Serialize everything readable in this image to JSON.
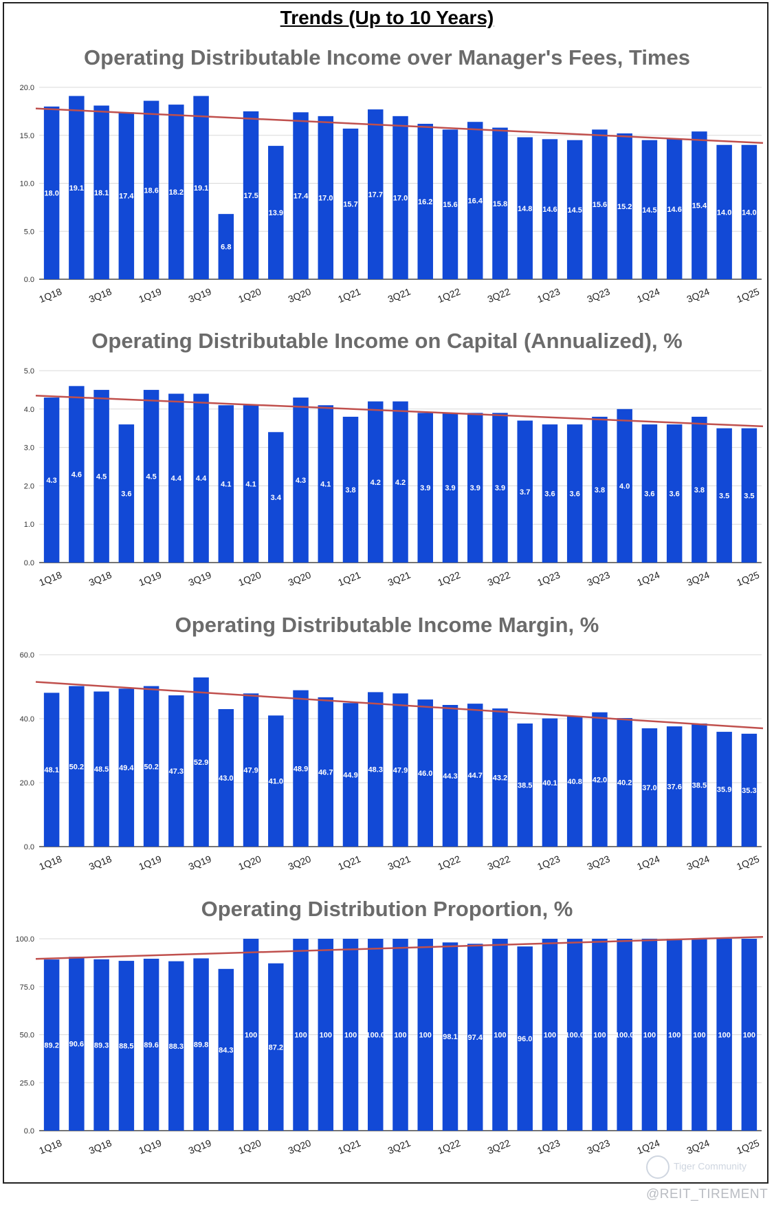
{
  "page": {
    "title": "Trends (Up to 10 Years)"
  },
  "colors": {
    "bar": "#1249d6",
    "trend": "#c0504d",
    "grid": "#d9d9d9"
  },
  "footer": {
    "watermark": "Tiger Community",
    "handle": "@REIT_TIREMENT"
  },
  "chart_data": [
    {
      "type": "bar",
      "title": "Operating Distributable Income over Manager's Fees, Times",
      "ylim": [
        0,
        20
      ],
      "yticks": [
        "0.0",
        "5.0",
        "10.0",
        "15.0",
        "20.0"
      ],
      "xtick_labels": [
        "1Q18",
        "3Q18",
        "1Q19",
        "3Q19",
        "1Q20",
        "3Q20",
        "1Q21",
        "3Q21",
        "1Q22",
        "3Q22",
        "1Q23",
        "3Q23",
        "1Q24",
        "3Q24",
        "1Q25"
      ],
      "values": [
        18.0,
        19.1,
        18.1,
        17.4,
        18.6,
        18.2,
        19.1,
        6.8,
        17.5,
        13.9,
        17.4,
        17.0,
        15.7,
        17.7,
        17.0,
        16.2,
        15.6,
        16.4,
        15.8,
        14.8,
        14.6,
        14.5,
        15.6,
        15.2,
        14.5,
        14.6,
        15.4,
        14.0,
        14.0
      ],
      "labels": [
        "18.0",
        "19.1",
        "18.1",
        "17.4",
        "18.6",
        "18.2",
        "19.1",
        "6.8",
        "17.5",
        "13.9",
        "17.4",
        "17.0",
        "15.7",
        "17.7",
        "17.0",
        "16.2",
        "15.6",
        "16.4",
        "15.8",
        "14.8",
        "14.6",
        "14.5",
        "15.6",
        "15.2",
        "14.5",
        "14.6",
        "15.4",
        "14.0",
        "14.0"
      ],
      "trendline": [
        17.8,
        14.2
      ]
    },
    {
      "type": "bar",
      "title": "Operating Distributable Income on Capital (Annualized), %",
      "ylim": [
        0,
        5
      ],
      "yticks": [
        "0.0",
        "1.0",
        "2.0",
        "3.0",
        "4.0",
        "5.0"
      ],
      "xtick_labels": [
        "1Q18",
        "3Q18",
        "1Q19",
        "3Q19",
        "1Q20",
        "3Q20",
        "1Q21",
        "3Q21",
        "1Q22",
        "3Q22",
        "1Q23",
        "3Q23",
        "1Q24",
        "3Q24",
        "1Q25"
      ],
      "values": [
        4.3,
        4.6,
        4.5,
        3.6,
        4.5,
        4.4,
        4.4,
        4.1,
        4.1,
        3.4,
        4.3,
        4.1,
        3.8,
        4.2,
        4.2,
        3.9,
        3.9,
        3.9,
        3.9,
        3.7,
        3.6,
        3.6,
        3.8,
        4.0,
        3.6,
        3.6,
        3.8,
        3.5,
        3.5
      ],
      "labels": [
        "4.3",
        "4.6",
        "4.5",
        "3.6",
        "4.5",
        "4.4",
        "4.4",
        "4.1",
        "4.1",
        "3.4",
        "4.3",
        "4.1",
        "3.8",
        "4.2",
        "4.2",
        "3.9",
        "3.9",
        "3.9",
        "3.9",
        "3.7",
        "3.6",
        "3.6",
        "3.8",
        "4.0",
        "3.6",
        "3.6",
        "3.8",
        "3.5",
        "3.5"
      ],
      "trendline": [
        4.35,
        3.55
      ]
    },
    {
      "type": "bar",
      "title": "Operating Distributable Income Margin, %",
      "ylim": [
        0,
        60
      ],
      "yticks": [
        "0.0",
        "20.0",
        "40.0",
        "60.0"
      ],
      "xtick_labels": [
        "1Q18",
        "3Q18",
        "1Q19",
        "3Q19",
        "1Q20",
        "3Q20",
        "1Q21",
        "3Q21",
        "1Q22",
        "3Q22",
        "1Q23",
        "3Q23",
        "1Q24",
        "3Q24",
        "1Q25"
      ],
      "values": [
        48.1,
        50.2,
        48.5,
        49.4,
        50.2,
        47.3,
        52.9,
        43.0,
        47.9,
        41.0,
        48.9,
        46.7,
        44.9,
        48.3,
        47.9,
        46.0,
        44.3,
        44.7,
        43.2,
        38.5,
        40.1,
        40.8,
        42.0,
        40.2,
        37.0,
        37.6,
        38.5,
        35.9,
        35.3
      ],
      "labels": [
        "48.1",
        "50.2",
        "48.5",
        "49.4",
        "50.2",
        "47.3",
        "52.9",
        "43.0",
        "47.9",
        "41.0",
        "48.9",
        "46.7",
        "44.9",
        "48.3",
        "47.9",
        "46.0",
        "44.3",
        "44.7",
        "43.2",
        "38.5",
        "40.1",
        "40.8",
        "42.0",
        "40.2",
        "37.0",
        "37.6",
        "38.5",
        "35.9",
        "35.3"
      ],
      "trendline": [
        51.5,
        37.0
      ]
    },
    {
      "type": "bar",
      "title": "Operating Distribution Proportion, %",
      "ylim": [
        0,
        100
      ],
      "yticks": [
        "0.0",
        "25.0",
        "50.0",
        "75.0",
        "100.0"
      ],
      "xtick_labels": [
        "1Q18",
        "3Q18",
        "1Q19",
        "3Q19",
        "1Q20",
        "3Q20",
        "1Q21",
        "3Q21",
        "1Q22",
        "3Q22",
        "1Q23",
        "3Q23",
        "1Q24",
        "3Q24",
        "1Q25"
      ],
      "values": [
        89.2,
        90.6,
        89.3,
        88.5,
        89.6,
        88.3,
        89.8,
        84.3,
        100,
        87.2,
        100,
        100,
        100,
        100.0,
        100,
        100,
        98.1,
        97.4,
        100,
        96.0,
        100,
        100.0,
        100,
        100.0,
        100,
        100,
        100,
        100,
        100
      ],
      "labels": [
        "89.2",
        "90.6",
        "89.3",
        "88.5",
        "89.6",
        "88.3",
        "89.8",
        "84.3",
        "100",
        "87.2",
        "100",
        "100",
        "100",
        "100.0",
        "100",
        "100",
        "98.1",
        "97.4",
        "100",
        "96.0",
        "100",
        "100.0",
        "100",
        "100.0",
        "100",
        "100",
        "100",
        "100",
        "100"
      ],
      "trendline": [
        89.5,
        101
      ]
    }
  ]
}
